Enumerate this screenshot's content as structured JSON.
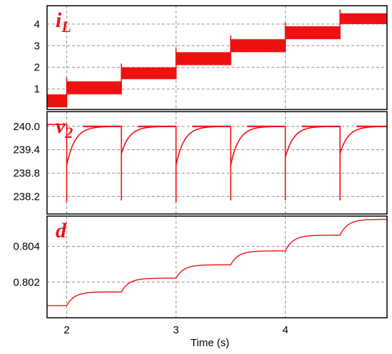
{
  "chart_data": {
    "type": "line",
    "xlabel": "Time (s)",
    "x_ticks": [
      "2",
      "3",
      "4"
    ],
    "xlim": [
      1.82,
      4.93
    ],
    "grid": true,
    "color": "#ee1111",
    "panels": [
      {
        "id": "iL",
        "label_main": "i",
        "label_sub": "L",
        "yticks": [
          "1",
          "2",
          "3",
          "4"
        ],
        "ytick_values": [
          1,
          2,
          3,
          4
        ],
        "ylim": [
          0.05,
          4.85
        ],
        "series": {
          "style": "band",
          "steps": [
            {
              "x0": 1.82,
              "x1": 2.0,
              "lo": 0.15,
              "hi": 0.75
            },
            {
              "x0": 2.0,
              "x1": 2.5,
              "lo": 0.75,
              "hi": 1.35
            },
            {
              "x0": 2.5,
              "x1": 3.0,
              "lo": 1.45,
              "hi": 2.0
            },
            {
              "x0": 3.0,
              "x1": 3.5,
              "lo": 2.1,
              "hi": 2.7
            },
            {
              "x0": 3.5,
              "x1": 4.0,
              "lo": 2.7,
              "hi": 3.3
            },
            {
              "x0": 4.0,
              "x1": 4.5,
              "lo": 3.3,
              "hi": 3.9
            },
            {
              "x0": 4.5,
              "x1": 4.93,
              "lo": 4.0,
              "hi": 4.5
            }
          ]
        }
      },
      {
        "id": "v2",
        "label_main": "v",
        "label_sub": "2",
        "yticks": [
          "240.0",
          "239.4",
          "238.8",
          "238.2"
        ],
        "ytick_values": [
          240.0,
          239.4,
          238.8,
          238.2
        ],
        "ylim": [
          237.75,
          240.38
        ],
        "series": {
          "style": "recovery",
          "steady": 240.0,
          "first_segment_start": 240.05,
          "steps_at": [
            2.0,
            2.5,
            3.0,
            3.5,
            4.0,
            4.5
          ],
          "spike_min": [
            238.05,
            238.1,
            238.05,
            238.1,
            238.1,
            238.1
          ],
          "dip_after": [
            239.0,
            239.3,
            239.0,
            239.0,
            239.2,
            239.3
          ],
          "tau": 0.075
        }
      },
      {
        "id": "d",
        "label_main": "d",
        "label_sub": "",
        "yticks": [
          "0.804",
          "0.802"
        ],
        "ytick_values": [
          0.804,
          0.802
        ],
        "ylim": [
          0.8,
          0.8057
        ],
        "series": {
          "style": "staircase",
          "steps": [
            {
              "x0": 1.82,
              "x1": 2.0,
              "from": 0.80068,
              "to": 0.80068
            },
            {
              "x0": 2.0,
              "x1": 2.5,
              "from": 0.80068,
              "to": 0.80145
            },
            {
              "x0": 2.5,
              "x1": 3.0,
              "from": 0.80145,
              "to": 0.80222
            },
            {
              "x0": 3.0,
              "x1": 3.5,
              "from": 0.80222,
              "to": 0.80297
            },
            {
              "x0": 3.5,
              "x1": 4.0,
              "from": 0.80297,
              "to": 0.80375
            },
            {
              "x0": 4.0,
              "x1": 4.5,
              "from": 0.80375,
              "to": 0.80463
            },
            {
              "x0": 4.5,
              "x1": 4.93,
              "from": 0.80463,
              "to": 0.80552
            }
          ],
          "tau": 0.07
        }
      }
    ]
  }
}
